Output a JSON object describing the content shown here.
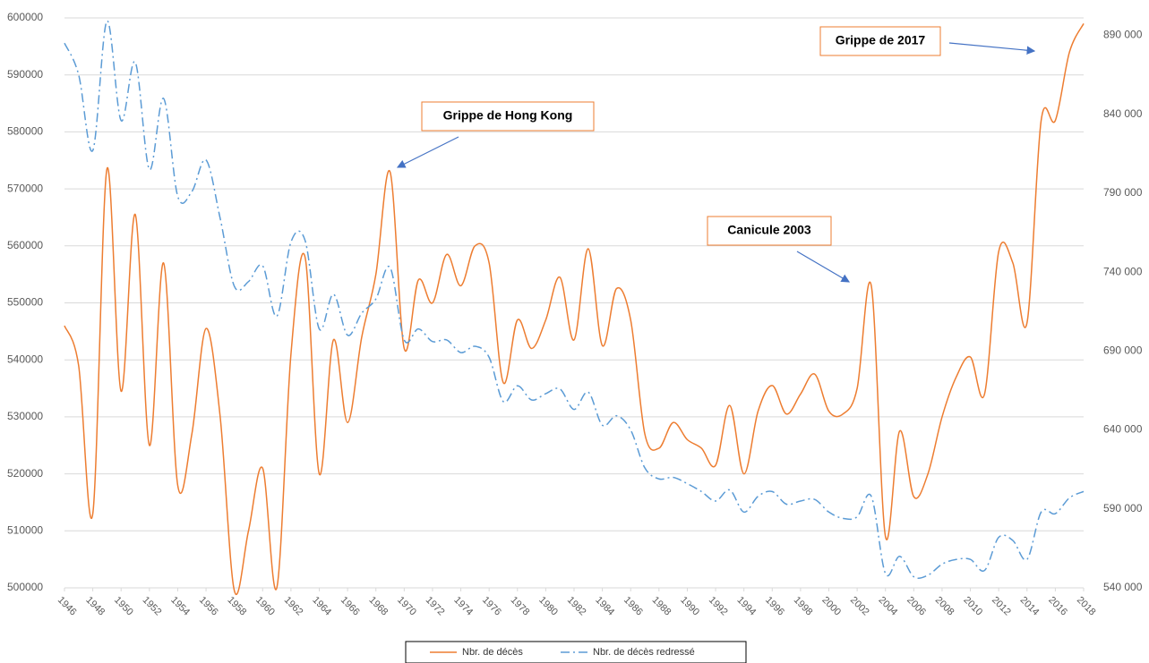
{
  "chart_data": {
    "type": "line",
    "x": [
      1946,
      1947,
      1948,
      1949,
      1950,
      1951,
      1952,
      1953,
      1954,
      1955,
      1956,
      1957,
      1958,
      1959,
      1960,
      1961,
      1962,
      1963,
      1964,
      1965,
      1966,
      1967,
      1968,
      1969,
      1970,
      1971,
      1972,
      1973,
      1974,
      1975,
      1976,
      1977,
      1978,
      1979,
      1980,
      1981,
      1982,
      1983,
      1984,
      1985,
      1986,
      1987,
      1988,
      1989,
      1990,
      1991,
      1992,
      1993,
      1994,
      1995,
      1996,
      1997,
      1998,
      1999,
      2000,
      2001,
      2002,
      2003,
      2004,
      2005,
      2006,
      2007,
      2008,
      2009,
      2010,
      2011,
      2012,
      2013,
      2014,
      2015,
      2016,
      2017,
      2018
    ],
    "xlim": [
      1946,
      2018
    ],
    "xticks": [
      1946,
      1948,
      1950,
      1952,
      1954,
      1956,
      1958,
      1960,
      1962,
      1964,
      1966,
      1968,
      1970,
      1972,
      1974,
      1976,
      1978,
      1980,
      1982,
      1984,
      1986,
      1988,
      1990,
      1992,
      1994,
      1996,
      1998,
      2000,
      2002,
      2004,
      2006,
      2008,
      2010,
      2012,
      2014,
      2016,
      2018
    ],
    "ylim": [
      500000,
      600000
    ],
    "yticks": [
      500000,
      510000,
      520000,
      530000,
      540000,
      550000,
      560000,
      570000,
      580000,
      590000,
      600000
    ],
    "y2lim": [
      540000,
      901000
    ],
    "y2ticks": [
      {
        "value": 540000,
        "label": "540 000"
      },
      {
        "value": 590000,
        "label": "590 000"
      },
      {
        "value": 640000,
        "label": "640 000"
      },
      {
        "value": 690000,
        "label": "690 000"
      },
      {
        "value": 740000,
        "label": "740 000"
      },
      {
        "value": 790000,
        "label": "790 000"
      },
      {
        "value": 840000,
        "label": "840 000"
      },
      {
        "value": 890000,
        "label": "890 000"
      }
    ],
    "grid": true,
    "legend": "bottom",
    "series": [
      {
        "name": "Nbr. de décès",
        "color": "#ED7D31",
        "axis": "y",
        "values": [
          546000,
          539000,
          513000,
          573500,
          534500,
          565500,
          525000,
          557000,
          518000,
          527000,
          545500,
          530000,
          499500,
          510000,
          521000,
          500000,
          541000,
          558000,
          520000,
          543500,
          529000,
          544000,
          555000,
          573000,
          542000,
          554000,
          550000,
          558500,
          553000,
          560000,
          557000,
          536000,
          547000,
          542000,
          547000,
          554500,
          543500,
          559500,
          542500,
          552500,
          547000,
          527000,
          524500,
          529000,
          526000,
          524500,
          521500,
          532000,
          520000,
          531000,
          535500,
          530500,
          534000,
          537500,
          531000,
          530500,
          535000,
          553000,
          509000,
          527500,
          516000,
          520000,
          530000,
          537000,
          540500,
          534000,
          559000,
          557000,
          546500,
          582000,
          582000,
          594000,
          599000
        ]
      },
      {
        "name": "Nbr. de décès redressé",
        "color": "#5B9BD5",
        "axis": "y2",
        "values": [
          885000,
          865000,
          817000,
          899000,
          836000,
          873000,
          805000,
          850000,
          788000,
          791000,
          811000,
          774000,
          731000,
          734000,
          744000,
          712000,
          759000,
          760000,
          704000,
          726000,
          700000,
          714000,
          723000,
          743000,
          697000,
          704000,
          696000,
          697000,
          689000,
          693000,
          686000,
          658000,
          668000,
          659000,
          663000,
          666000,
          653000,
          664000,
          643000,
          649000,
          640000,
          616000,
          609000,
          610000,
          606000,
          601000,
          595000,
          602000,
          588000,
          598000,
          601000,
          593000,
          595000,
          596000,
          588000,
          584000,
          585000,
          598000,
          549000,
          560000,
          547000,
          548000,
          555000,
          558000,
          558000,
          551000,
          572000,
          570000,
          558000,
          588000,
          587000,
          597000,
          601000
        ]
      }
    ],
    "annotations": [
      {
        "text": "Grippe de Hong Kong"
      },
      {
        "text": "Canicule 2003"
      },
      {
        "text": "Grippe de 2017"
      }
    ]
  }
}
